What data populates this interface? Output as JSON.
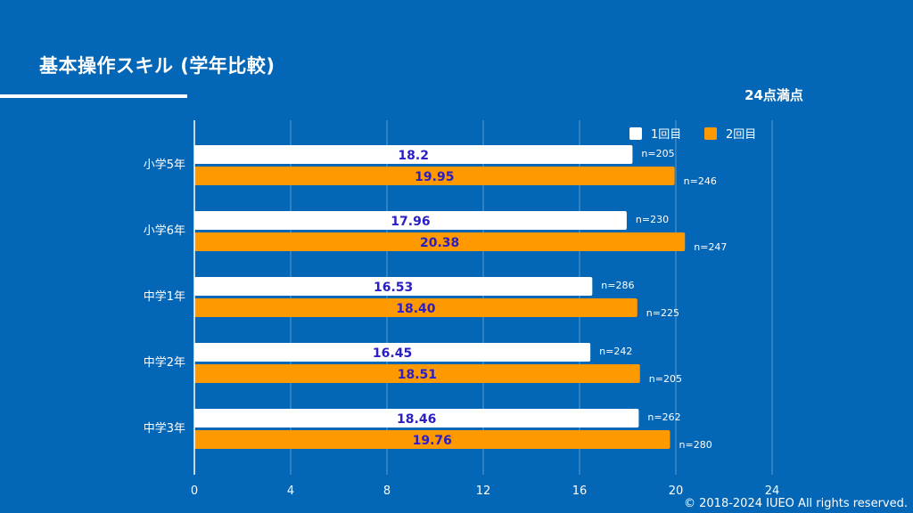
{
  "slide": {
    "title": "基本操作スキル (学年比較)",
    "max_note": "24点満点",
    "copyright": "© 2018-2024 IUEO All rights reserved."
  },
  "colors": {
    "background": "#0366b6",
    "series_1": "#ffffff",
    "series_2": "#ff9900",
    "value_label": "#2a1fc4",
    "gridline": "#5d99cf"
  },
  "chart_data": {
    "type": "bar",
    "orientation": "horizontal",
    "categories": [
      "小学5年",
      "小学6年",
      "中学1年",
      "中学2年",
      "中学3年"
    ],
    "series": [
      {
        "name": "1回目",
        "values": [
          18.2,
          17.96,
          16.53,
          16.45,
          18.46
        ],
        "labels": [
          "18.2",
          "17.96",
          "16.53",
          "16.45",
          "18.46"
        ],
        "n": [
          "n=205",
          "n=230",
          "n=286",
          "n=242",
          "n=262"
        ]
      },
      {
        "name": "2回目",
        "values": [
          19.95,
          20.38,
          18.4,
          18.51,
          19.76
        ],
        "labels": [
          "19.95",
          "20.38",
          "18.40",
          "18.51",
          "19.76"
        ],
        "n": [
          "n=246",
          "n=247",
          "n=225",
          "n=205",
          "n=280"
        ]
      }
    ],
    "xlim": [
      0,
      24
    ],
    "xticks": [
      0,
      4,
      8,
      12,
      16,
      20,
      24
    ],
    "grid": true,
    "legend": "top-right"
  }
}
